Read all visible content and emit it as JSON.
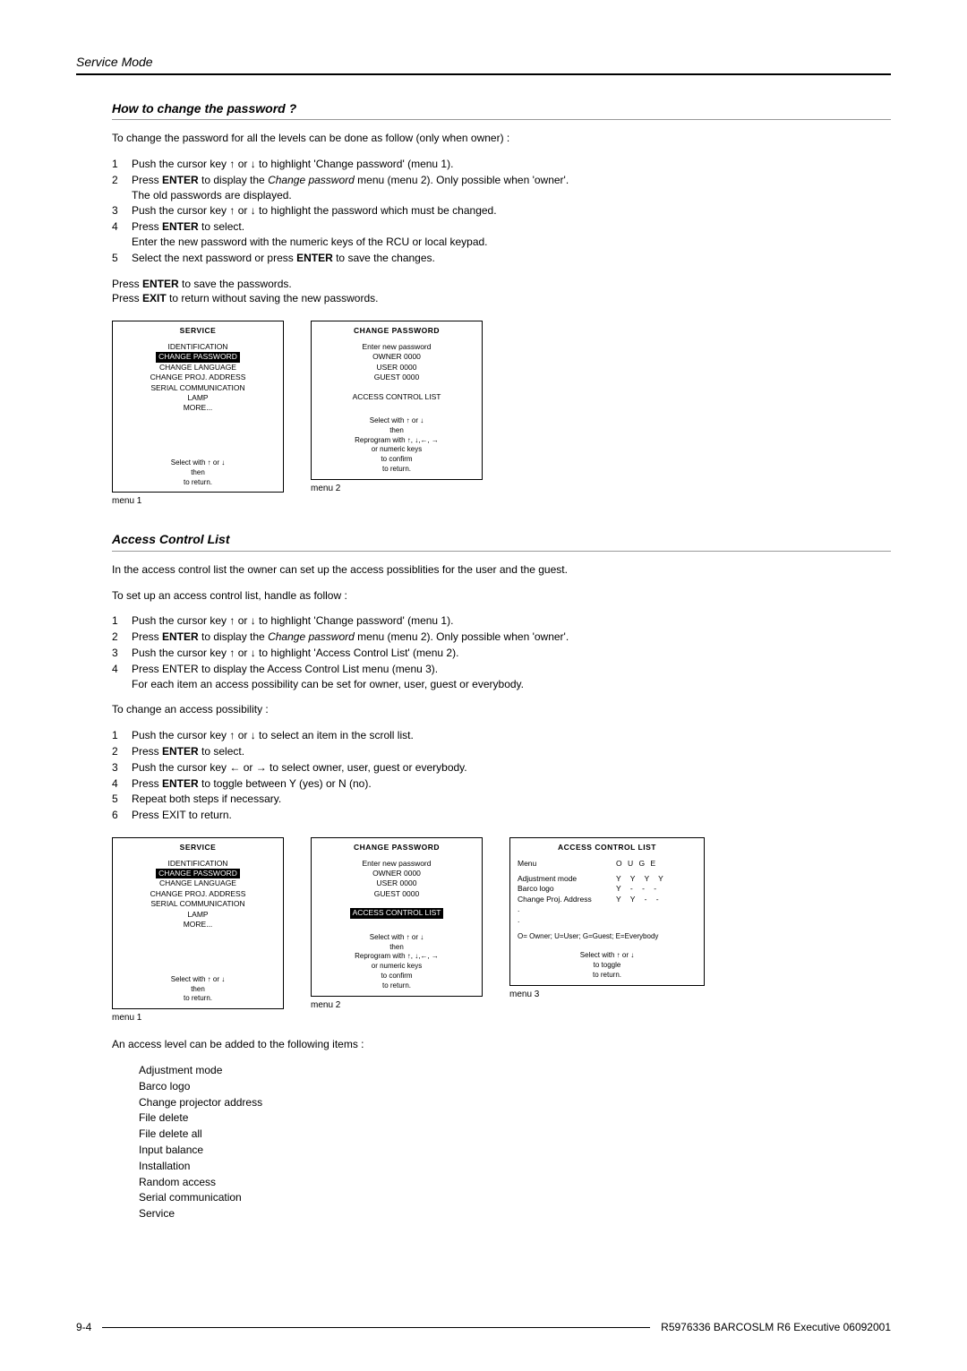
{
  "header": "Service Mode",
  "section1": {
    "title": "How to change the password ?",
    "intro": "To change the password for all the levels can be done as follow (only when owner) :",
    "steps": [
      {
        "n": "1",
        "t": "Push the cursor key ↑ or ↓ to highlight 'Change password' (menu 1)."
      },
      {
        "n": "2",
        "t": "",
        "html": "Press <b>ENTER</b> to display the <i>Change password</i> menu (menu 2).  Only possible when 'owner'.<br>The old passwords are displayed."
      },
      {
        "n": "3",
        "t": "Push the cursor key ↑ or ↓ to highlight the password which must be changed."
      },
      {
        "n": "4",
        "t": "",
        "html": "Press <b>ENTER</b> to select.<br>Enter the new password with the numeric keys of the RCU or local keypad."
      },
      {
        "n": "5",
        "t": "",
        "html": "Select the next password or press <b>ENTER</b> to save the changes."
      }
    ],
    "after": "Press <b>ENTER</b> to save the passwords.<br>Press <b>EXIT</b> to return without saving the new passwords."
  },
  "menuService": {
    "title": "SERVICE",
    "items": [
      "IDENTIFICATION",
      "CHANGE PASSWORD",
      "CHANGE LANGUAGE",
      "CHANGE PROJ. ADDRESS",
      "SERIAL COMMUNICATION",
      "LAMP",
      "MORE..."
    ],
    "footer": [
      "Select with ↑ or ↓",
      "then  <ENTER>",
      "<EXIT>  to  return."
    ]
  },
  "menuChangePwd": {
    "title": "CHANGE  PASSWORD",
    "top": [
      "Enter  new  password",
      "OWNER  0000",
      "USER  0000",
      "GUEST  0000"
    ],
    "mid": "ACCESS  CONTROL  LIST",
    "footer": [
      "Select with ↑ or ↓",
      "then  <ENTER>",
      "Reprogram with ↑, ↓,←, →",
      "or  numeric  keys",
      "<ENTER>  to  confirm",
      "<EXIT>  to  return."
    ]
  },
  "menuChangePwd2": {
    "title": "CHANGE  PASSWORD",
    "top": [
      "Enter  new  password",
      "OWNER  0000",
      "USER  0000",
      "GUEST  0000"
    ],
    "mid": "ACCESS  CONTROL  LIST",
    "footer": [
      "Select with ↑ or ↓",
      "then  <ENTER>",
      "Reprogram with ↑, ↓,←, →",
      "or  numeric  keys",
      "<ENTER>  to  confirm",
      "<EXIT>  to  return."
    ]
  },
  "captions": {
    "m1": "menu 1",
    "m2": "menu 2",
    "m3": "menu 3"
  },
  "section2": {
    "title": "Access Control List",
    "intro": "In the access control list the owner can set up the access possiblities for the user and the guest.",
    "setup_intro": "To set up an access control list, handle as follow :",
    "steps1": [
      {
        "n": "1",
        "t": "Push the cursor key ↑ or ↓ to highlight 'Change password' (menu 1)."
      },
      {
        "n": "2",
        "t": "",
        "html": "Press <b>ENTER</b> to display the <i>Change password</i> menu (menu 2).  Only possible when 'owner'."
      },
      {
        "n": "3",
        "t": "Push the cursor key ↑ or ↓ to highlight 'Access Control List' (menu 2)."
      },
      {
        "n": "4",
        "t": "",
        "html": "Press ENTER to display the Access Control List menu (menu 3).<br>For each item an access possibility can be set for owner, user, guest or everybody."
      }
    ],
    "change_intro": "To change an access possibility :",
    "steps2": [
      {
        "n": "1",
        "t": "Push the cursor key ↑ or ↓ to select an item in the scroll list."
      },
      {
        "n": "2",
        "t": "",
        "html": "Press <b>ENTER</b> to select."
      },
      {
        "n": "3",
        "t": "Push the cursor key ← or → to select owner, user, guest or everybody."
      },
      {
        "n": "4",
        "t": "",
        "html": "Press <b>ENTER</b> to toggle between Y (yes) or N (no)."
      },
      {
        "n": "5",
        "t": "Repeat both steps if necessary."
      },
      {
        "n": "6",
        "t": "Press EXIT to return."
      }
    ]
  },
  "menuACL": {
    "title": "ACCESS  CONTROL  LIST",
    "header": {
      "label": "Menu",
      "vals": "O  U  G  E"
    },
    "rows": [
      {
        "label": "Adjustment  mode",
        "vals": "Y Y Y Y"
      },
      {
        "label": "Barco  logo",
        "vals": "Y -  -  -"
      },
      {
        "label": "Change Proj. Address",
        "vals": "Y Y -  -"
      },
      {
        "label": ".",
        "vals": ""
      },
      {
        "label": ".",
        "vals": ""
      }
    ],
    "legend": "O= Owner; U=User; G=Guest; E=Everybody",
    "footer": [
      "Select with ↑ or ↓",
      "<ENTER>  to  toggle",
      "<EXIT>  to  return."
    ]
  },
  "section3": {
    "intro": "An access level can be added to the following items :",
    "items": [
      "Adjustment mode",
      "Barco logo",
      "Change projector address",
      "File delete",
      "File delete all",
      "Input balance",
      "Installation",
      "Random access",
      "Serial communication",
      "Service"
    ]
  },
  "footer": {
    "left": "9-4",
    "right": "R5976336 BARCOSLM R6 Executive 06092001"
  }
}
